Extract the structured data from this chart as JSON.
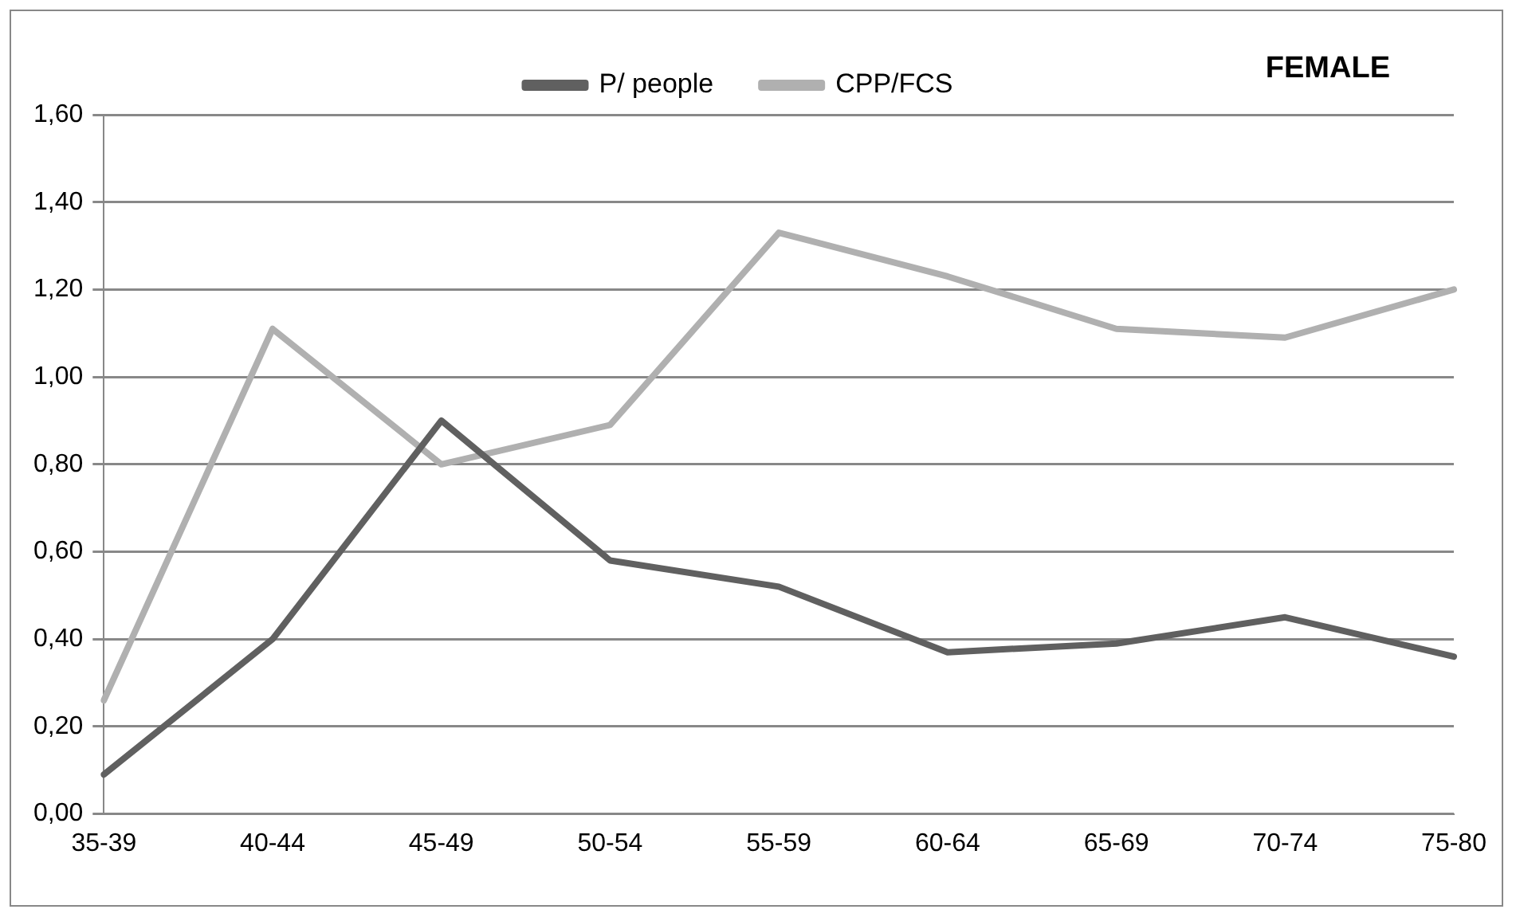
{
  "chart_data": {
    "type": "line",
    "title": "FEMALE",
    "categories": [
      "35-39",
      "40-44",
      "45-49",
      "50-54",
      "55-59",
      "60-64",
      "65-69",
      "70-74",
      "75-80"
    ],
    "series": [
      {
        "name": "P/ people",
        "color": "#606060",
        "values": [
          0.09,
          0.4,
          0.9,
          0.58,
          0.52,
          0.37,
          0.39,
          0.45,
          0.36
        ]
      },
      {
        "name": "CPP/FCS",
        "color": "#b0b0b0",
        "values": [
          0.26,
          1.11,
          0.8,
          0.89,
          1.33,
          1.23,
          1.11,
          1.09,
          1.2
        ]
      }
    ],
    "ylim": [
      0,
      1.6
    ],
    "yticks": [
      {
        "value": 0,
        "label": "0,00"
      },
      {
        "value": 0.2,
        "label": "0,20"
      },
      {
        "value": 0.4,
        "label": "0,40"
      },
      {
        "value": 0.6,
        "label": "0,60"
      },
      {
        "value": 0.8,
        "label": "0,80"
      },
      {
        "value": 1.0,
        "label": "1,00"
      },
      {
        "value": 1.2,
        "label": "1,20"
      },
      {
        "value": 1.4,
        "label": "1,40"
      },
      {
        "value": 1.6,
        "label": "1,60"
      }
    ],
    "grid": "y",
    "legend": "top",
    "marker": "none",
    "line_style": "solid"
  }
}
